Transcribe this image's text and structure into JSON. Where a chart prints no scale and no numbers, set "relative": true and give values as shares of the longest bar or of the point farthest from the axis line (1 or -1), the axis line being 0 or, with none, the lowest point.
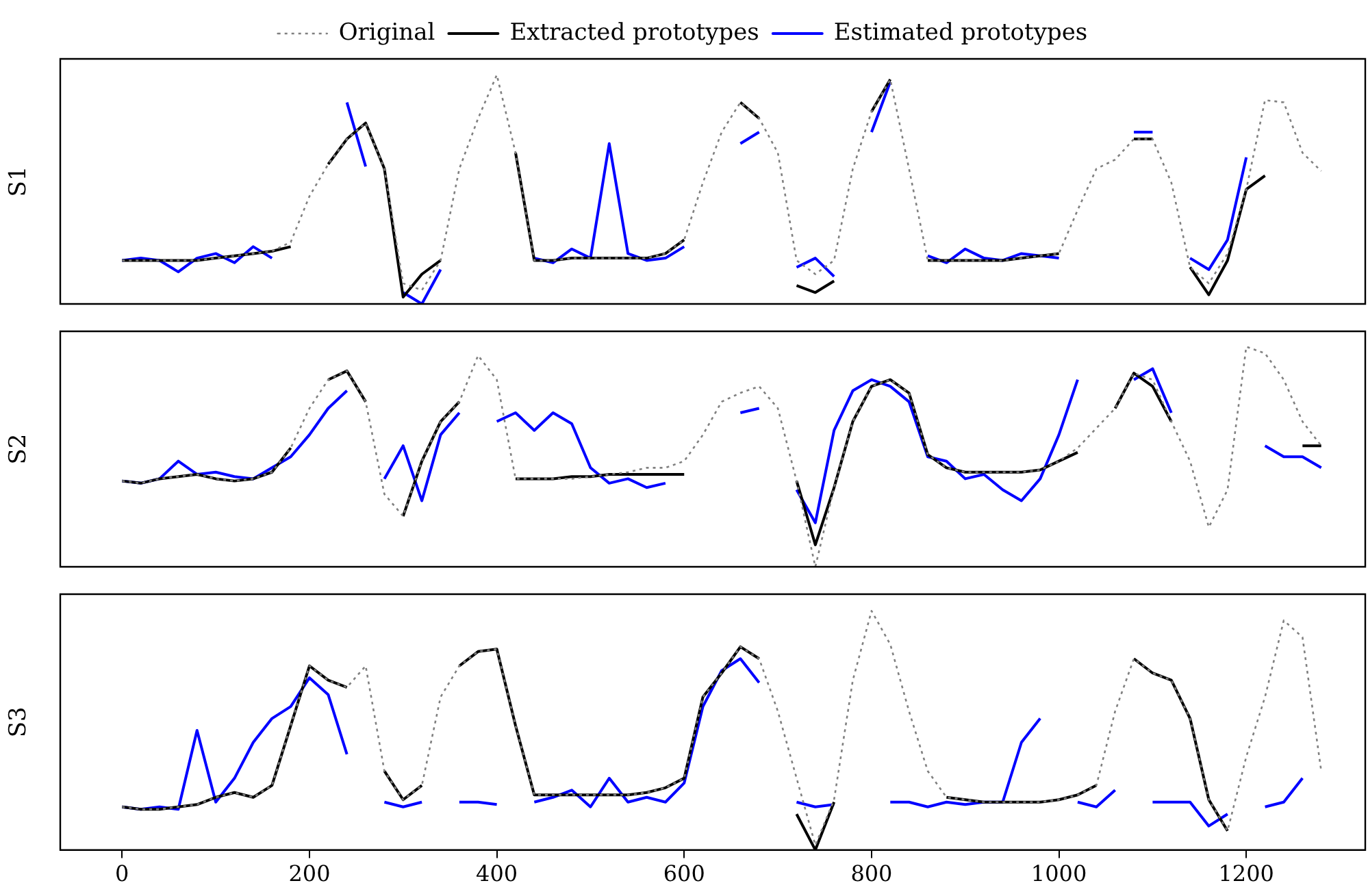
{
  "chart_data": [
    {
      "type": "line",
      "ylabel": "S1",
      "relative": true,
      "legend": "top",
      "marker": "none",
      "tick_labels": false,
      "xlim": [
        -66,
        1327
      ],
      "x": [
        0,
        20,
        40,
        60,
        80,
        100,
        120,
        140,
        160,
        180,
        200,
        220,
        240,
        260,
        280,
        300,
        320,
        340,
        360,
        380,
        400,
        420,
        440,
        460,
        480,
        500,
        520,
        540,
        560,
        580,
        600,
        620,
        640,
        660,
        680,
        700,
        720,
        740,
        760,
        780,
        800,
        820,
        840,
        860,
        880,
        900,
        920,
        940,
        960,
        980,
        1000,
        1020,
        1040,
        1060,
        1080,
        1100,
        1120,
        1140,
        1160,
        1180,
        1200,
        1220,
        1240,
        1260,
        1280
      ],
      "series": [
        {
          "name": "Original",
          "color": "#808080",
          "line_style": "dotted",
          "values": [
            0.19,
            0.19,
            0.19,
            0.19,
            0.19,
            0.2,
            0.21,
            0.22,
            0.23,
            0.27,
            0.47,
            0.61,
            0.72,
            0.79,
            0.59,
            0.09,
            0.06,
            0.19,
            0.59,
            0.81,
            1,
            0.66,
            0.19,
            0.19,
            0.2,
            0.2,
            0.2,
            0.2,
            0.2,
            0.22,
            0.28,
            0.53,
            0.75,
            0.88,
            0.81,
            0.66,
            0.19,
            0.13,
            0.19,
            0.59,
            0.84,
            0.98,
            0.59,
            0.19,
            0.19,
            0.19,
            0.19,
            0.19,
            0.2,
            0.21,
            0.22,
            0.41,
            0.59,
            0.63,
            0.72,
            0.72,
            0.53,
            0.16,
            0.09,
            0.22,
            0.5,
            0.89,
            0.88,
            0.66,
            0.58
          ]
        },
        {
          "name": "Extracted prototypes",
          "color": "#000000",
          "line_style": "solid",
          "values": [
            0.19,
            0.19,
            0.19,
            0.19,
            0.19,
            0.2,
            0.21,
            0.22,
            0.23,
            0.25,
            null,
            0.61,
            0.72,
            0.79,
            0.59,
            0.03,
            0.13,
            0.19,
            null,
            null,
            null,
            0.66,
            0.19,
            0.19,
            0.2,
            0.2,
            0.2,
            0.2,
            0.2,
            0.22,
            0.28,
            null,
            null,
            0.88,
            0.81,
            null,
            0.08,
            0.05,
            0.1,
            null,
            0.84,
            0.98,
            null,
            0.19,
            0.19,
            0.19,
            0.19,
            0.19,
            0.2,
            0.21,
            0.22,
            null,
            null,
            null,
            0.72,
            0.72,
            null,
            0.16,
            0.04,
            0.19,
            0.5,
            0.56,
            null,
            null,
            null
          ]
        },
        {
          "name": "Estimated prototypes",
          "color": "#0000ff",
          "line_style": "solid",
          "values": [
            0.19,
            0.2,
            0.19,
            0.14,
            0.2,
            0.22,
            0.18,
            0.25,
            0.2,
            null,
            null,
            null,
            0.88,
            0.6,
            null,
            0.05,
            0,
            0.15,
            null,
            null,
            null,
            null,
            0.2,
            0.18,
            0.24,
            0.2,
            0.7,
            0.22,
            0.19,
            0.2,
            0.25,
            null,
            null,
            0.7,
            0.75,
            null,
            0.16,
            0.2,
            0.12,
            null,
            0.75,
            0.97,
            null,
            0.21,
            0.18,
            0.24,
            0.2,
            0.19,
            0.22,
            0.21,
            0.2,
            null,
            null,
            null,
            0.75,
            0.75,
            null,
            0.2,
            0.15,
            0.28,
            0.64,
            null,
            null,
            null,
            null
          ]
        }
      ]
    },
    {
      "type": "line",
      "ylabel": "S2",
      "relative": true,
      "marker": "none",
      "tick_labels": false,
      "xlim": [
        -66,
        1327
      ],
      "x": [
        0,
        20,
        40,
        60,
        80,
        100,
        120,
        140,
        160,
        180,
        200,
        220,
        240,
        260,
        280,
        300,
        320,
        340,
        360,
        380,
        400,
        420,
        440,
        460,
        480,
        500,
        520,
        540,
        560,
        580,
        600,
        620,
        640,
        660,
        680,
        700,
        720,
        740,
        760,
        780,
        800,
        820,
        840,
        860,
        880,
        900,
        920,
        940,
        960,
        980,
        1000,
        1020,
        1040,
        1060,
        1080,
        1100,
        1120,
        1140,
        1160,
        1180,
        1200,
        1220,
        1240,
        1260,
        1280
      ],
      "series": [
        {
          "color": "#808080",
          "line_style": "dotted",
          "values": [
            0.39,
            0.38,
            0.4,
            0.41,
            0.42,
            0.4,
            0.39,
            0.4,
            0.43,
            0.54,
            0.72,
            0.85,
            0.89,
            0.75,
            0.33,
            0.23,
            0.48,
            0.66,
            0.75,
            0.96,
            0.85,
            0.4,
            0.4,
            0.4,
            0.4,
            0.41,
            0.42,
            0.43,
            0.45,
            0.45,
            0.48,
            0.6,
            0.75,
            0.79,
            0.82,
            0.72,
            0.39,
            0,
            0.36,
            0.66,
            0.82,
            0.85,
            0.79,
            0.51,
            0.45,
            0.43,
            0.43,
            0.43,
            0.43,
            0.44,
            0.48,
            0.54,
            0.63,
            0.72,
            0.88,
            0.85,
            0.66,
            0.48,
            0.18,
            0.35,
            1,
            0.97,
            0.85,
            0.66,
            0.55
          ]
        },
        {
          "color": "#000000",
          "line_style": "solid",
          "values": [
            0.39,
            0.38,
            0.4,
            0.41,
            0.42,
            0.4,
            0.39,
            0.4,
            0.43,
            0.54,
            null,
            0.85,
            0.89,
            0.75,
            null,
            0.23,
            0.48,
            0.66,
            0.75,
            null,
            null,
            0.4,
            0.4,
            0.4,
            0.41,
            0.41,
            0.42,
            0.42,
            0.42,
            0.42,
            0.42,
            null,
            null,
            null,
            null,
            null,
            0.39,
            0.1,
            0.36,
            0.66,
            0.82,
            0.85,
            0.79,
            0.51,
            0.45,
            0.43,
            0.43,
            0.43,
            0.43,
            0.44,
            0.48,
            0.52,
            null,
            0.72,
            0.88,
            0.82,
            0.66,
            null,
            null,
            null,
            null,
            null,
            null,
            0.55,
            0.55
          ]
        },
        {
          "color": "#0000ff",
          "line_style": "solid",
          "values": [
            0.39,
            0.38,
            0.4,
            0.48,
            0.42,
            0.43,
            0.41,
            0.4,
            0.45,
            0.5,
            0.6,
            0.72,
            0.8,
            null,
            0.4,
            0.55,
            0.3,
            0.6,
            0.7,
            null,
            0.66,
            0.7,
            0.62,
            0.7,
            0.65,
            0.45,
            0.38,
            0.4,
            0.36,
            0.38,
            null,
            null,
            null,
            0.7,
            0.72,
            null,
            0.35,
            0.2,
            0.62,
            0.8,
            0.85,
            0.82,
            0.75,
            0.5,
            0.48,
            0.4,
            0.42,
            0.35,
            0.3,
            0.4,
            0.6,
            0.85,
            null,
            null,
            0.85,
            0.9,
            0.7,
            null,
            null,
            null,
            null,
            0.55,
            0.5,
            0.5,
            0.45
          ]
        }
      ]
    },
    {
      "type": "line",
      "ylabel": "S3",
      "relative": true,
      "marker": "none",
      "tick_labels": "x",
      "xlim": [
        -66,
        1327
      ],
      "xticks": [
        0,
        200,
        400,
        600,
        800,
        1000,
        1200
      ],
      "x": [
        0,
        20,
        40,
        60,
        80,
        100,
        120,
        140,
        160,
        180,
        200,
        220,
        240,
        260,
        280,
        300,
        320,
        340,
        360,
        380,
        400,
        420,
        440,
        460,
        480,
        500,
        520,
        540,
        560,
        580,
        600,
        620,
        640,
        660,
        680,
        700,
        720,
        740,
        760,
        780,
        800,
        820,
        840,
        860,
        880,
        900,
        920,
        940,
        960,
        980,
        1000,
        1020,
        1040,
        1060,
        1080,
        1100,
        1120,
        1140,
        1160,
        1180,
        1200,
        1220,
        1240,
        1260,
        1280
      ],
      "series": [
        {
          "color": "#808080",
          "line_style": "dotted",
          "values": [
            0.18,
            0.17,
            0.17,
            0.18,
            0.19,
            0.22,
            0.24,
            0.22,
            0.27,
            0.52,
            0.77,
            0.71,
            0.68,
            0.77,
            0.33,
            0.21,
            0.27,
            0.64,
            0.77,
            0.83,
            0.84,
            0.52,
            0.23,
            0.23,
            0.23,
            0.23,
            0.23,
            0.23,
            0.24,
            0.26,
            0.3,
            0.64,
            0.74,
            0.85,
            0.8,
            0.58,
            0.3,
            0.02,
            0.21,
            0.71,
            1,
            0.86,
            0.58,
            0.33,
            0.22,
            0.21,
            0.2,
            0.2,
            0.2,
            0.2,
            0.21,
            0.23,
            0.27,
            0.58,
            0.8,
            0.74,
            0.71,
            0.55,
            0.21,
            0.08,
            0.39,
            0.64,
            0.96,
            0.89,
            0.33
          ]
        },
        {
          "color": "#000000",
          "line_style": "solid",
          "values": [
            0.18,
            0.17,
            0.17,
            0.18,
            0.19,
            0.22,
            0.24,
            0.22,
            0.27,
            0.52,
            0.77,
            0.71,
            0.68,
            null,
            0.33,
            0.21,
            0.27,
            null,
            0.77,
            0.83,
            0.84,
            0.52,
            0.23,
            0.23,
            0.23,
            0.23,
            0.23,
            0.23,
            0.24,
            0.26,
            0.3,
            0.64,
            0.74,
            0.85,
            0.8,
            null,
            0.15,
            0,
            0.2,
            null,
            null,
            null,
            null,
            null,
            0.22,
            0.21,
            0.2,
            0.2,
            0.2,
            0.2,
            0.21,
            0.23,
            0.27,
            null,
            0.8,
            0.74,
            0.71,
            0.55,
            0.21,
            0.08,
            null,
            null,
            null,
            null,
            null
          ]
        },
        {
          "color": "#0000ff",
          "line_style": "solid",
          "values": [
            0.18,
            0.17,
            0.18,
            0.17,
            0.5,
            0.2,
            0.3,
            0.45,
            0.55,
            0.6,
            0.72,
            0.65,
            0.4,
            null,
            0.2,
            0.18,
            0.2,
            null,
            0.2,
            0.2,
            0.19,
            null,
            0.2,
            0.22,
            0.25,
            0.18,
            0.3,
            0.2,
            0.22,
            0.2,
            0.28,
            0.6,
            0.75,
            0.8,
            0.7,
            null,
            0.2,
            0.18,
            0.19,
            null,
            null,
            0.2,
            0.2,
            0.18,
            0.2,
            0.19,
            0.2,
            0.2,
            0.45,
            0.55,
            null,
            0.2,
            0.18,
            0.25,
            null,
            0.2,
            0.2,
            0.2,
            0.1,
            0.15,
            null,
            0.18,
            0.2,
            0.3,
            null
          ]
        }
      ]
    }
  ]
}
